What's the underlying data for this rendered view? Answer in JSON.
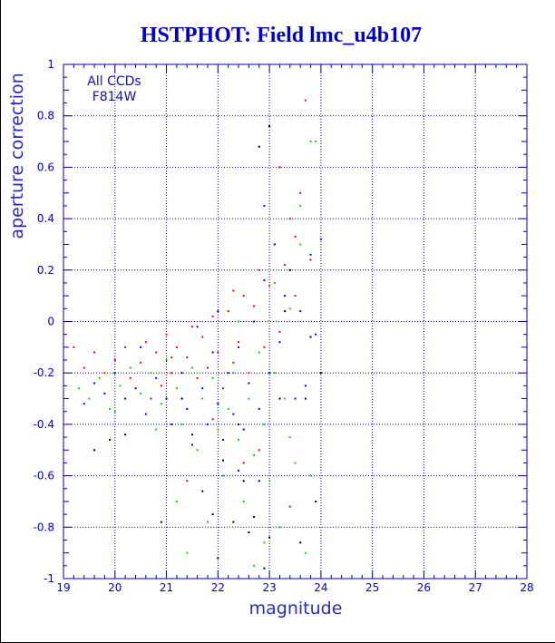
{
  "colors": {
    "title": "#0000cc",
    "axes": "#0000b0",
    "labels": "#2a2ac8",
    "series": [
      "#ff0000",
      "#00e000",
      "#0000ff",
      "#000000"
    ]
  },
  "chart_data": {
    "type": "scatter",
    "title": "HSTPHOT: Field lmc_u4b107",
    "xlabel": "magnitude",
    "ylabel": "aperture correction",
    "xlim": [
      19,
      28
    ],
    "ylim": [
      -1,
      1
    ],
    "x_ticks": [
      "19",
      "20",
      "21",
      "22",
      "23",
      "24",
      "25",
      "26",
      "27",
      "28"
    ],
    "y_ticks": [
      "-1",
      "-0.8",
      "-0.6",
      "-0.4",
      "-0.2",
      "0",
      "0.2",
      "0.4",
      "0.6",
      "0.8",
      "1"
    ],
    "grid": true,
    "annotations": [
      "All CCDs",
      "F814W"
    ],
    "series": [
      {
        "color": "#ff0000",
        "points": [
          [
            19.2,
            -0.1
          ],
          [
            19.4,
            -0.18
          ],
          [
            19.6,
            -0.12
          ],
          [
            19.8,
            -0.2
          ],
          [
            20.0,
            -0.15
          ],
          [
            20.2,
            -0.1
          ],
          [
            20.3,
            -0.22
          ],
          [
            20.5,
            -0.16
          ],
          [
            20.6,
            -0.08
          ],
          [
            20.8,
            -0.12
          ],
          [
            20.9,
            -0.25
          ],
          [
            21.0,
            -0.05
          ],
          [
            21.1,
            -0.2
          ],
          [
            21.2,
            -0.1
          ],
          [
            21.3,
            -0.3
          ],
          [
            21.4,
            -0.14
          ],
          [
            21.5,
            -0.02
          ],
          [
            21.6,
            -0.22
          ],
          [
            21.7,
            -0.06
          ],
          [
            21.8,
            -0.18
          ],
          [
            21.9,
            0.02
          ],
          [
            22.0,
            -0.12
          ],
          [
            22.1,
            -0.26
          ],
          [
            22.2,
            0.04
          ],
          [
            22.3,
            -0.16
          ],
          [
            22.4,
            -0.08
          ],
          [
            22.5,
            0.1
          ],
          [
            22.6,
            -0.2
          ],
          [
            22.7,
            0.06
          ],
          [
            22.8,
            0.2
          ],
          [
            22.9,
            -0.1
          ],
          [
            23.0,
            0.14
          ],
          [
            23.1,
            0.3
          ],
          [
            23.2,
            -0.04
          ],
          [
            23.3,
            0.22
          ],
          [
            23.4,
            0.4
          ],
          [
            23.5,
            0.1
          ],
          [
            23.6,
            0.5
          ],
          [
            23.7,
            0.86
          ],
          [
            23.8,
            0.24
          ],
          [
            21.4,
            -0.62
          ],
          [
            22.5,
            -0.55
          ],
          [
            23.4,
            -0.72
          ],
          [
            20.7,
            -0.3
          ],
          [
            21.9,
            -0.38
          ],
          [
            22.8,
            -0.5
          ],
          [
            23.2,
            0.6
          ],
          [
            23.5,
            0.33
          ],
          [
            22.3,
            0.12
          ],
          [
            21.1,
            -0.14
          ]
        ]
      },
      {
        "color": "#00e000",
        "points": [
          [
            19.3,
            -0.26
          ],
          [
            19.5,
            -0.3
          ],
          [
            19.7,
            -0.22
          ],
          [
            19.9,
            -0.34
          ],
          [
            20.1,
            -0.25
          ],
          [
            20.3,
            -0.18
          ],
          [
            20.5,
            -0.28
          ],
          [
            20.7,
            -0.2
          ],
          [
            20.9,
            -0.32
          ],
          [
            21.0,
            -0.15
          ],
          [
            21.2,
            -0.26
          ],
          [
            21.3,
            -0.4
          ],
          [
            21.5,
            -0.18
          ],
          [
            21.6,
            -0.5
          ],
          [
            21.7,
            -0.3
          ],
          [
            21.9,
            -0.22
          ],
          [
            22.0,
            -0.42
          ],
          [
            22.1,
            -0.6
          ],
          [
            22.2,
            -0.34
          ],
          [
            22.3,
            -0.2
          ],
          [
            22.4,
            -0.46
          ],
          [
            22.5,
            -0.7
          ],
          [
            22.6,
            -0.3
          ],
          [
            22.7,
            -0.52
          ],
          [
            22.8,
            -0.12
          ],
          [
            22.9,
            -0.4
          ],
          [
            23.0,
            -0.62
          ],
          [
            23.1,
            -0.2
          ],
          [
            23.2,
            -0.8
          ],
          [
            23.3,
            -0.3
          ],
          [
            23.4,
            0.05
          ],
          [
            23.5,
            -0.55
          ],
          [
            23.6,
            0.3
          ],
          [
            23.7,
            -0.9
          ],
          [
            23.8,
            0.7
          ],
          [
            23.9,
            0.7
          ],
          [
            23.6,
            0.45
          ],
          [
            23.1,
            0.15
          ],
          [
            22.7,
            -0.95
          ],
          [
            21.8,
            -0.78
          ],
          [
            21.4,
            -0.9
          ],
          [
            22.9,
            -0.86
          ],
          [
            20.8,
            -0.42
          ],
          [
            21.2,
            -0.7
          ],
          [
            23.4,
            -0.45
          ],
          [
            23.8,
            -0.6
          ],
          [
            22.4,
            0.0
          ],
          [
            20.0,
            -0.35
          ]
        ]
      },
      {
        "color": "#0000ff",
        "points": [
          [
            19.4,
            -0.32
          ],
          [
            19.6,
            -0.24
          ],
          [
            19.8,
            -0.28
          ],
          [
            20.0,
            -0.2
          ],
          [
            20.2,
            -0.3
          ],
          [
            20.4,
            -0.26
          ],
          [
            20.6,
            -0.36
          ],
          [
            20.8,
            -0.22
          ],
          [
            21.0,
            -0.3
          ],
          [
            21.1,
            -0.4
          ],
          [
            21.3,
            -0.2
          ],
          [
            21.4,
            -0.34
          ],
          [
            21.5,
            -0.48
          ],
          [
            21.7,
            -0.26
          ],
          [
            21.8,
            -0.4
          ],
          [
            21.9,
            -0.12
          ],
          [
            22.0,
            -0.32
          ],
          [
            22.1,
            -0.46
          ],
          [
            22.2,
            -0.2
          ],
          [
            22.3,
            -0.36
          ],
          [
            22.4,
            -0.1
          ],
          [
            22.5,
            -0.42
          ],
          [
            22.6,
            -0.24
          ],
          [
            22.7,
            0.0
          ],
          [
            22.8,
            -0.34
          ],
          [
            22.9,
            0.16
          ],
          [
            23.0,
            -0.2
          ],
          [
            23.1,
            0.3
          ],
          [
            23.2,
            -0.08
          ],
          [
            23.3,
            0.1
          ],
          [
            23.4,
            0.2
          ],
          [
            23.5,
            -0.3
          ],
          [
            23.6,
            0.04
          ],
          [
            23.8,
            0.26
          ],
          [
            24.0,
            0.32
          ],
          [
            22.9,
            0.45
          ],
          [
            22.4,
            -0.58
          ],
          [
            21.6,
            -0.02
          ],
          [
            23.7,
            -0.25
          ],
          [
            23.9,
            -0.05
          ],
          [
            20.5,
            -0.1
          ],
          [
            22.0,
            0.04
          ]
        ]
      },
      {
        "color": "#000000",
        "points": [
          [
            19.6,
            -0.5
          ],
          [
            19.9,
            -0.46
          ],
          [
            20.2,
            -0.44
          ],
          [
            20.9,
            -0.78
          ],
          [
            21.7,
            -0.66
          ],
          [
            21.9,
            -0.75
          ],
          [
            22.0,
            -0.92
          ],
          [
            22.3,
            -0.78
          ],
          [
            22.5,
            -0.62
          ],
          [
            22.7,
            -0.76
          ],
          [
            22.8,
            -0.62
          ],
          [
            22.9,
            -0.96
          ],
          [
            23.0,
            -0.84
          ],
          [
            23.2,
            -0.3
          ],
          [
            23.4,
            0.2
          ],
          [
            23.6,
            -0.86
          ],
          [
            23.8,
            -0.06
          ],
          [
            22.8,
            0.68
          ],
          [
            23.0,
            0.76
          ],
          [
            22.6,
            -0.82
          ],
          [
            22.1,
            -0.54
          ],
          [
            21.5,
            -0.44
          ],
          [
            23.3,
            0.04
          ],
          [
            23.9,
            -0.7
          ],
          [
            24.0,
            -0.2
          ],
          [
            23.7,
            -0.3
          ],
          [
            21.3,
            -0.3
          ],
          [
            22.4,
            -0.4
          ]
        ]
      }
    ]
  }
}
